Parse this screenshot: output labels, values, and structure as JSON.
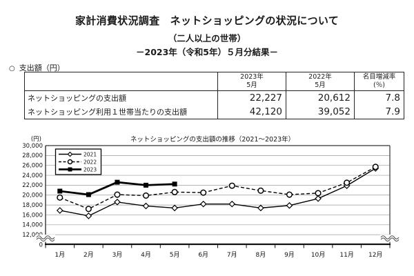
{
  "header": {
    "title": "家計消費状況調査　ネットショッピングの状況について",
    "subtitle1": "（二人以上の世帯）",
    "subtitle2": "－2023年（令和5年）５月分結果－"
  },
  "section": {
    "bullet": "○",
    "label": "支出額（円）"
  },
  "table": {
    "columns": [
      {
        "line1": "2023年",
        "line2": "5月"
      },
      {
        "line1": "2022年",
        "line2": "5月"
      },
      {
        "line1": "名目増減率",
        "line2": "(％)"
      }
    ],
    "rows": [
      {
        "label": "ネットショッピングの支出額",
        "v2023": "22,227",
        "v2022": "20,612",
        "rate": "7.8"
      },
      {
        "label": "ネットショッピング利用１世帯当たりの支出額",
        "v2023": "42,120",
        "v2022": "39,052",
        "rate": "7.9"
      }
    ]
  },
  "chart_data": {
    "type": "line",
    "title": "ネットショッピングの支出額の推移（2021～2023年）",
    "y_unit_label": "(円)",
    "categories": [
      "1月",
      "2月",
      "3月",
      "4月",
      "5月",
      "6月",
      "7月",
      "8月",
      "9月",
      "10月",
      "11月",
      "12月"
    ],
    "series": [
      {
        "name": "2021",
        "style": "solid-thin",
        "marker": "diamond-open",
        "values": [
          16900,
          15800,
          18600,
          17800,
          17400,
          18200,
          18200,
          17400,
          17900,
          19300,
          21900,
          25400
        ]
      },
      {
        "name": "2022",
        "style": "dashed",
        "marker": "circle-open",
        "values": [
          19500,
          17200,
          20100,
          19900,
          20612,
          20500,
          21900,
          20900,
          20100,
          20400,
          22500,
          25700
        ]
      },
      {
        "name": "2023",
        "style": "solid-thick",
        "marker": "square-filled",
        "values": [
          20800,
          20100,
          22600,
          22000,
          22227,
          null,
          null,
          null,
          null,
          null,
          null,
          null
        ]
      }
    ],
    "ylim": [
      12000,
      30000
    ],
    "y_tick_step": 2000,
    "y_ticks": [
      30000,
      28000,
      26000,
      24000,
      22000,
      20000,
      18000,
      16000,
      14000,
      12000,
      0
    ],
    "y_axis_break_to_zero": true,
    "grid": true,
    "legend_position": "top-left",
    "line_color": "#000000",
    "grid_color": "#9a9a9a"
  }
}
